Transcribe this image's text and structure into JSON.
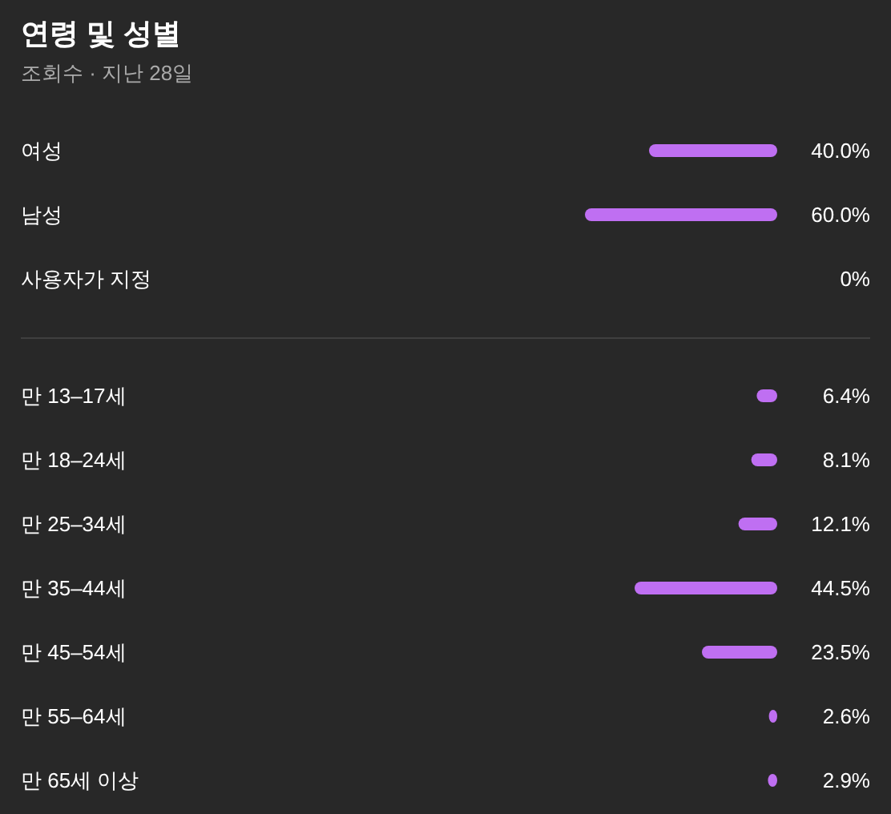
{
  "chart_data": [
    {
      "type": "bar",
      "orientation": "horizontal",
      "title": "연령 및 성별",
      "subtitle": "조회수 · 지난 28일",
      "categories": [
        "여성",
        "남성",
        "사용자가 지정"
      ],
      "values": [
        40.0,
        60.0,
        0
      ],
      "value_labels": [
        "40.0%",
        "60.0%",
        "0%"
      ],
      "color": "#bf6ff2"
    },
    {
      "type": "bar",
      "orientation": "horizontal",
      "categories": [
        "만 13–17세",
        "만 18–24세",
        "만 25–34세",
        "만 35–44세",
        "만 45–54세",
        "만 55–64세",
        "만 65세 이상"
      ],
      "values": [
        6.4,
        8.1,
        12.1,
        44.5,
        23.5,
        2.6,
        2.9
      ],
      "value_labels": [
        "6.4%",
        "8.1%",
        "12.1%",
        "44.5%",
        "23.5%",
        "2.6%",
        "2.9%"
      ],
      "color": "#bf6ff2"
    }
  ]
}
